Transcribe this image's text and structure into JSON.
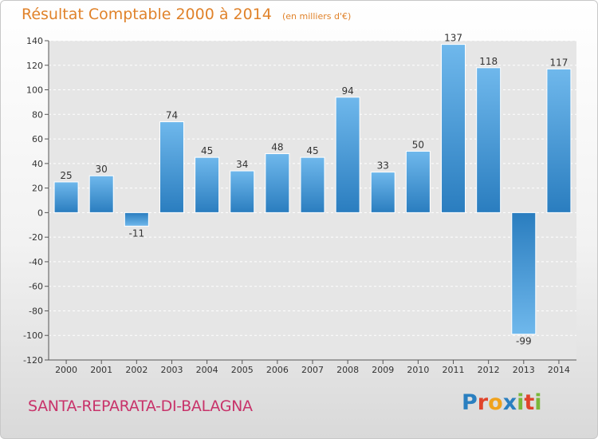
{
  "header": {
    "title": "Résultat Comptable 2000 à 2014",
    "subtitle": "(en milliers d'€)"
  },
  "footer": {
    "commune": "SANTA-REPARATA-DI-BALAGNA",
    "logo_letters": [
      "P",
      "r",
      "o",
      "x",
      "i",
      "t",
      "i"
    ],
    "logo_colors": [
      "#2a7fc0",
      "#e0442b",
      "#f0a21c",
      "#2a7fc0",
      "#7ab73a",
      "#e0442b",
      "#7ab73a"
    ]
  },
  "chart_data": {
    "type": "bar",
    "title": "Résultat Comptable 2000 à 2014",
    "subtitle": "(en milliers d'€)",
    "categories": [
      "2000",
      "2001",
      "2002",
      "2003",
      "2004",
      "2005",
      "2006",
      "2007",
      "2008",
      "2009",
      "2010",
      "2011",
      "2012",
      "2013",
      "2014"
    ],
    "values": [
      25,
      30,
      -11,
      74,
      45,
      34,
      48,
      45,
      94,
      33,
      50,
      137,
      118,
      -99,
      117
    ],
    "data_labels": [
      "25",
      "30",
      "-11",
      "74",
      "45",
      "34",
      "48",
      "45",
      "94",
      "33",
      "50",
      "137",
      "118",
      "-99",
      "117"
    ],
    "ylim": [
      -120,
      140
    ],
    "yticks": [
      140,
      120,
      100,
      80,
      60,
      40,
      20,
      0,
      -20,
      -40,
      -60,
      -80,
      -100,
      -120
    ],
    "grid": true,
    "bar_color_top": "#6fb8ec",
    "bar_color_bottom": "#2a7dbf",
    "label_color": "#333333"
  }
}
